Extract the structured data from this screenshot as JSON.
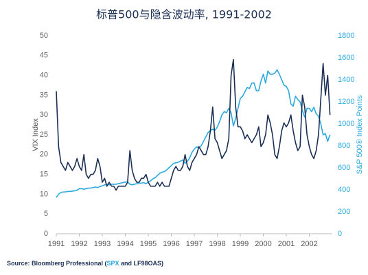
{
  "chart_data": {
    "type": "line",
    "title": "标普500与隐含波动率, 1991-2002",
    "y_label": "VIX Index",
    "y2_label": "S&P 500® Index Points",
    "source": [
      "Source: Bloomberg Professional (",
      "SPX",
      " and LF98OAS)"
    ],
    "source_highlight_color": "#2aa9e0",
    "x": [
      1991,
      1991.1,
      1991.2,
      1991.3,
      1991.4,
      1991.5,
      1991.6,
      1991.7,
      1991.8,
      1991.9,
      1992,
      1992.1,
      1992.2,
      1992.3,
      1992.4,
      1992.5,
      1992.6,
      1992.7,
      1992.8,
      1992.9,
      1993,
      1993.1,
      1993.2,
      1993.3,
      1993.4,
      1993.5,
      1993.6,
      1993.7,
      1993.8,
      1993.9,
      1994,
      1994.1,
      1994.2,
      1994.3,
      1994.4,
      1994.5,
      1994.6,
      1994.7,
      1994.8,
      1994.9,
      1995,
      1995.1,
      1995.2,
      1995.3,
      1995.4,
      1995.5,
      1995.6,
      1995.7,
      1995.8,
      1995.9,
      1996,
      1996.1,
      1996.2,
      1996.3,
      1996.4,
      1996.5,
      1996.6,
      1996.7,
      1996.8,
      1996.9,
      1997,
      1997.1,
      1997.2,
      1997.3,
      1997.4,
      1997.5,
      1997.6,
      1997.7,
      1997.8,
      1997.9,
      1998,
      1998.1,
      1998.2,
      1998.3,
      1998.4,
      1998.5,
      1998.6,
      1998.7,
      1998.8,
      1998.9,
      1999,
      1999.1,
      1999.2,
      1999.3,
      1999.4,
      1999.5,
      1999.6,
      1999.7,
      1999.8,
      1999.9,
      2000,
      2000.1,
      2000.2,
      2000.3,
      2000.4,
      2000.5,
      2000.6,
      2000.7,
      2000.8,
      2000.9,
      2001,
      2001.1,
      2001.2,
      2001.3,
      2001.4,
      2001.5,
      2001.6,
      2001.7,
      2001.8,
      2001.9,
      2002,
      2002.1,
      2002.2,
      2002.3,
      2002.4,
      2002.5,
      2002.6,
      2002.7,
      2002.8,
      2002.9
    ],
    "xlim": [
      1991,
      2003
    ],
    "xticks": [
      1991,
      1992,
      1993,
      1994,
      1995,
      1996,
      1997,
      1998,
      1999,
      2000,
      2001,
      2002
    ],
    "ylim": [
      0,
      50
    ],
    "yticks": [
      0,
      5,
      10,
      15,
      20,
      25,
      30,
      35,
      40,
      45,
      50
    ],
    "y2lim": [
      0,
      1800
    ],
    "y2ticks": [
      0,
      200,
      400,
      600,
      800,
      1000,
      1200,
      1400,
      1600,
      1800
    ],
    "y_tick_color": "#666666",
    "y2_tick_color": "#2aa9e0",
    "series": [
      {
        "name": "VIX",
        "color": "#1b2f55",
        "values": [
          36,
          22,
          18,
          17,
          16,
          18,
          17,
          16,
          17,
          19,
          17,
          16,
          20,
          15,
          14,
          15,
          15,
          16,
          19,
          17,
          13,
          14,
          12,
          13,
          12,
          12,
          11,
          12,
          12,
          12,
          12,
          13,
          21,
          16,
          14,
          13,
          13,
          14,
          14,
          15,
          13,
          12,
          12,
          12,
          13,
          12,
          13,
          12,
          12,
          12,
          14,
          16,
          17,
          16,
          16,
          17,
          20,
          17,
          16,
          18,
          19,
          20,
          22,
          21,
          20,
          20,
          22,
          26,
          32,
          24,
          23,
          21,
          19,
          20,
          21,
          24,
          40,
          44,
          32,
          27,
          27,
          26,
          24,
          25,
          24,
          23,
          24,
          25,
          27,
          22,
          23,
          25,
          30,
          28,
          25,
          20,
          19,
          22,
          26,
          28,
          27,
          28,
          30,
          26,
          23,
          21,
          22,
          35,
          32,
          25,
          22,
          20,
          19,
          21,
          25,
          34,
          43,
          35,
          40,
          30
        ]
      },
      {
        "name": "SPX",
        "color": "#2aa9e0",
        "axis": "y2",
        "values": [
          330,
          360,
          375,
          380,
          380,
          385,
          385,
          388,
          390,
          395,
          410,
          410,
          405,
          410,
          415,
          415,
          420,
          425,
          420,
          430,
          435,
          445,
          450,
          445,
          450,
          450,
          450,
          455,
          460,
          465,
          470,
          470,
          450,
          445,
          450,
          455,
          460,
          460,
          465,
          455,
          470,
          480,
          500,
          510,
          530,
          550,
          560,
          565,
          580,
          600,
          620,
          640,
          645,
          650,
          660,
          670,
          640,
          660,
          690,
          740,
          770,
          790,
          780,
          800,
          840,
          880,
          920,
          940,
          950,
          940,
          970,
          1020,
          1080,
          1110,
          1100,
          1140,
          1100,
          980,
          1050,
          1140,
          1230,
          1250,
          1290,
          1330,
          1320,
          1370,
          1370,
          1300,
          1300,
          1390,
          1450,
          1370,
          1480,
          1450,
          1450,
          1460,
          1490,
          1450,
          1400,
          1350,
          1340,
          1300,
          1180,
          1160,
          1250,
          1220,
          1200,
          1120,
          1060,
          1140,
          1140,
          1110,
          1150,
          1090,
          1070,
          1000,
          900,
          910,
          840,
          900
        ]
      }
    ]
  }
}
